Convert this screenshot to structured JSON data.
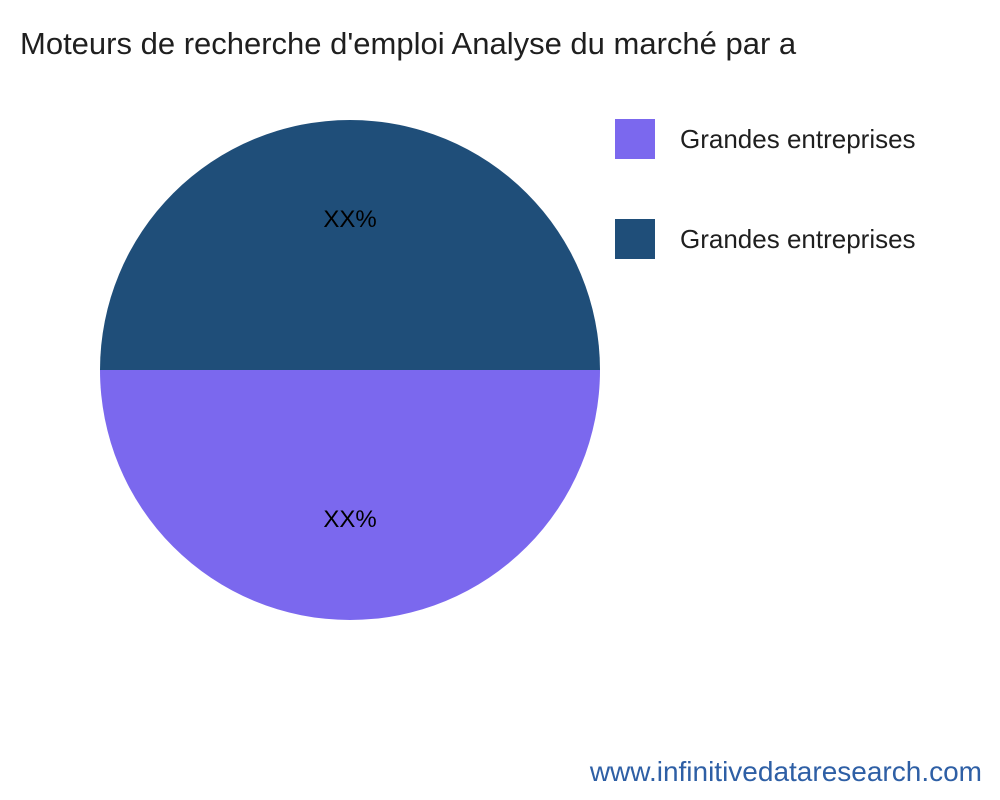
{
  "title": "Moteurs de recherche d'emploi Analyse du marché par a",
  "chart_data": {
    "type": "pie",
    "title": "Moteurs de recherche d'emploi Analyse du marché par a",
    "start_angle_deg": 90,
    "label_radius_fraction": 0.6,
    "slices": [
      {
        "label": "Grandes entreprises",
        "value": 50,
        "display_label": "XX%",
        "color": "#7b68ee"
      },
      {
        "label": "Grandes entreprises",
        "value": 50,
        "display_label": "XX%",
        "color": "#1f4e79"
      }
    ],
    "legend_position": "right"
  },
  "legend": {
    "items": [
      {
        "label": "Grandes entreprises",
        "color": "#7b68ee"
      },
      {
        "label": "Grandes entreprises",
        "color": "#1f4e79"
      }
    ]
  },
  "footer": {
    "url": "www.infinitivedataresearch.com"
  }
}
